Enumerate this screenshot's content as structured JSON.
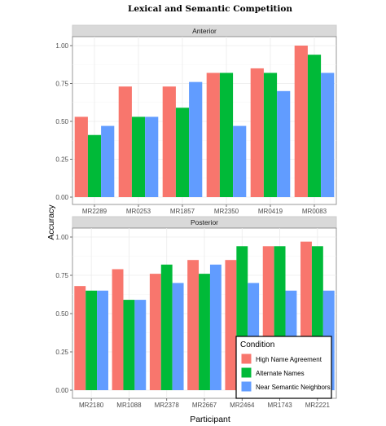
{
  "chart_data": {
    "type": "bar",
    "title": "Lexical and Semantic Competition",
    "xlabel": "Participant",
    "ylabel": "Accuracy",
    "ylim": [
      0,
      1.0
    ],
    "yticks": [
      "0.00",
      "0.25",
      "0.50",
      "0.75",
      "1.00"
    ],
    "grid": true,
    "legend": {
      "title": "Condition",
      "placement": "bottom-right",
      "entries": [
        "High Name Agreement",
        "Alternate Names",
        "Near Semantic Neighbors"
      ]
    },
    "colors": [
      "#F8766D",
      "#00BA38",
      "#619CFF"
    ],
    "panels": [
      {
        "strip": "Anterior",
        "categories": [
          "MR2289",
          "MR0253",
          "MR1857",
          "MR2350",
          "MR0419",
          "MR0083"
        ],
        "series": [
          {
            "name": "High Name Agreement",
            "values": [
              0.53,
              0.73,
              0.73,
              0.82,
              0.85,
              1.0
            ]
          },
          {
            "name": "Alternate Names",
            "values": [
              0.41,
              0.53,
              0.59,
              0.82,
              0.82,
              0.94
            ]
          },
          {
            "name": "Near Semantic Neighbors",
            "values": [
              0.47,
              0.53,
              0.76,
              0.47,
              0.7,
              0.82
            ]
          }
        ]
      },
      {
        "strip": "Posterior",
        "categories": [
          "MR2180",
          "MR1088",
          "MR2378",
          "MR2667",
          "MR2464",
          "MR1743",
          "MR2221"
        ],
        "series": [
          {
            "name": "High Name Agreement",
            "values": [
              0.68,
              0.79,
              0.76,
              0.85,
              0.85,
              0.94,
              0.97
            ]
          },
          {
            "name": "Alternate Names",
            "values": [
              0.65,
              0.59,
              0.82,
              0.76,
              0.94,
              0.94,
              0.94
            ]
          },
          {
            "name": "Near Semantic Neighbors",
            "values": [
              0.65,
              0.59,
              0.7,
              0.82,
              0.7,
              0.65,
              0.65
            ]
          }
        ]
      }
    ]
  }
}
